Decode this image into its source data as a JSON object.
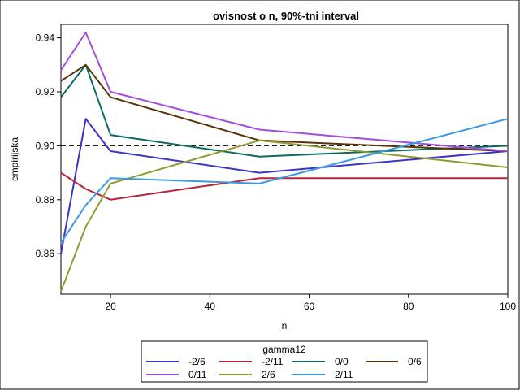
{
  "chart_data": {
    "type": "line",
    "title": "ovisnost o n, 90%-tni interval",
    "xlabel": "n",
    "ylabel": "empirijska",
    "xlim": [
      10,
      100
    ],
    "ylim": [
      0.845,
      0.945
    ],
    "xticks": [
      20,
      40,
      60,
      80,
      100
    ],
    "yticks": [
      0.86,
      0.88,
      0.9,
      0.92,
      0.94
    ],
    "ytick_labels": [
      "0.86",
      "0.88",
      "0.90",
      "0.92",
      "0.94"
    ],
    "reference_line": 0.9,
    "grid": false,
    "legend_title": "gamma12",
    "legend_position": "bottom",
    "x": [
      10,
      15,
      20,
      50,
      100
    ],
    "series": [
      {
        "name": "-2/6",
        "color": "#3b35c8",
        "values": [
          0.86,
          0.91,
          0.898,
          0.89,
          0.898
        ]
      },
      {
        "name": "-2/11",
        "color": "#b5263a",
        "values": [
          0.89,
          0.884,
          0.88,
          0.888,
          0.888
        ]
      },
      {
        "name": "0/0",
        "color": "#0b6b62",
        "values": [
          0.918,
          0.93,
          0.904,
          0.896,
          0.9
        ]
      },
      {
        "name": "0/6",
        "color": "#5a3208",
        "values": [
          0.924,
          0.93,
          0.918,
          0.902,
          0.898
        ]
      },
      {
        "name": "0/11",
        "color": "#a44ddb",
        "values": [
          0.928,
          0.942,
          0.92,
          0.906,
          0.898
        ]
      },
      {
        "name": "2/6",
        "color": "#8f9a2e",
        "values": [
          0.846,
          0.87,
          0.886,
          0.902,
          0.892
        ]
      },
      {
        "name": "2/11",
        "color": "#3a9ae4",
        "values": [
          0.864,
          0.878,
          0.888,
          0.886,
          0.91
        ]
      }
    ]
  }
}
